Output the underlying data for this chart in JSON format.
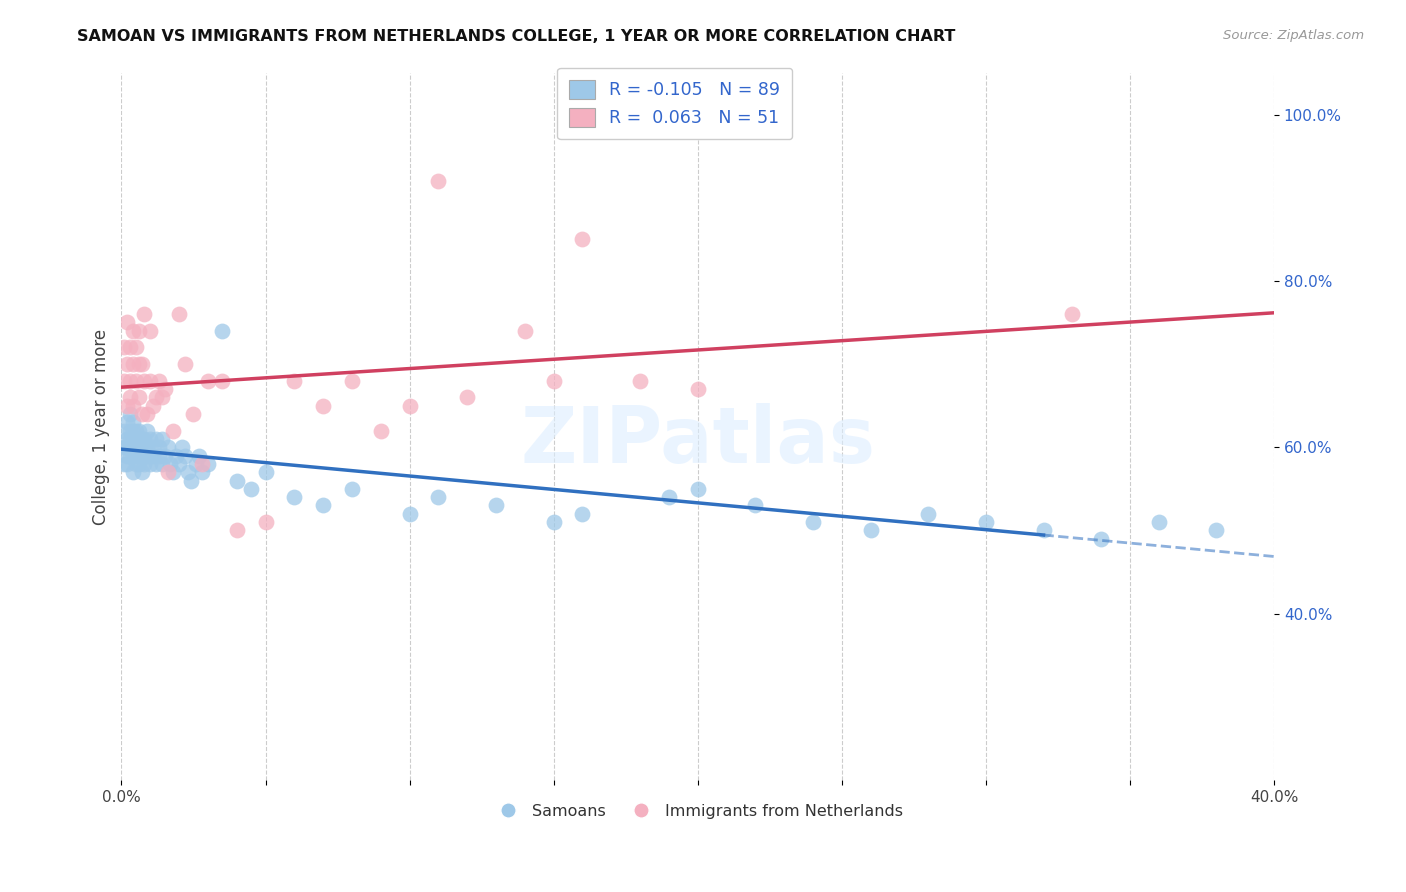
{
  "title": "SAMOAN VS IMMIGRANTS FROM NETHERLANDS COLLEGE, 1 YEAR OR MORE CORRELATION CHART",
  "source": "Source: ZipAtlas.com",
  "ylabel": "College, 1 year or more",
  "xlim": [
    0.0,
    0.4
  ],
  "ylim": [
    0.2,
    1.05
  ],
  "xtick_pos": [
    0.0,
    0.05,
    0.1,
    0.15,
    0.2,
    0.25,
    0.3,
    0.35,
    0.4
  ],
  "xtick_labels": [
    "0.0%",
    "",
    "",
    "",
    "",
    "",
    "",
    "",
    "40.0%"
  ],
  "ytick_pos": [
    0.4,
    0.6,
    0.8,
    1.0
  ],
  "ytick_labels": [
    "40.0%",
    "60.0%",
    "80.0%",
    "100.0%"
  ],
  "blue_r": -0.105,
  "blue_n": 89,
  "pink_r": 0.063,
  "pink_n": 51,
  "blue_color": "#9ec8e8",
  "pink_color": "#f4b0c0",
  "blue_line_color": "#3070c0",
  "pink_line_color": "#d04060",
  "background_color": "#ffffff",
  "grid_color": "#cccccc",
  "watermark": "ZIPatlas",
  "legend_label_blue": "Samoans",
  "legend_label_pink": "Immigrants from Netherlands",
  "blue_x": [
    0.001,
    0.001,
    0.001,
    0.002,
    0.002,
    0.002,
    0.002,
    0.002,
    0.003,
    0.003,
    0.003,
    0.003,
    0.003,
    0.004,
    0.004,
    0.004,
    0.004,
    0.004,
    0.004,
    0.005,
    0.005,
    0.005,
    0.005,
    0.005,
    0.005,
    0.006,
    0.006,
    0.006,
    0.006,
    0.006,
    0.007,
    0.007,
    0.007,
    0.007,
    0.008,
    0.008,
    0.008,
    0.008,
    0.009,
    0.009,
    0.009,
    0.01,
    0.01,
    0.01,
    0.011,
    0.011,
    0.012,
    0.012,
    0.013,
    0.013,
    0.014,
    0.014,
    0.015,
    0.016,
    0.017,
    0.018,
    0.019,
    0.02,
    0.021,
    0.022,
    0.023,
    0.024,
    0.026,
    0.027,
    0.028,
    0.03,
    0.035,
    0.04,
    0.045,
    0.05,
    0.06,
    0.07,
    0.08,
    0.1,
    0.11,
    0.13,
    0.15,
    0.16,
    0.19,
    0.2,
    0.22,
    0.24,
    0.26,
    0.28,
    0.3,
    0.32,
    0.34,
    0.36,
    0.38
  ],
  "blue_y": [
    0.6,
    0.62,
    0.58,
    0.59,
    0.61,
    0.6,
    0.63,
    0.58,
    0.6,
    0.62,
    0.59,
    0.61,
    0.64,
    0.6,
    0.62,
    0.59,
    0.61,
    0.63,
    0.57,
    0.6,
    0.61,
    0.59,
    0.62,
    0.6,
    0.58,
    0.61,
    0.59,
    0.6,
    0.62,
    0.58,
    0.6,
    0.59,
    0.61,
    0.57,
    0.6,
    0.59,
    0.61,
    0.58,
    0.6,
    0.59,
    0.62,
    0.59,
    0.61,
    0.58,
    0.6,
    0.59,
    0.58,
    0.61,
    0.59,
    0.6,
    0.58,
    0.61,
    0.59,
    0.6,
    0.58,
    0.57,
    0.59,
    0.58,
    0.6,
    0.59,
    0.57,
    0.56,
    0.58,
    0.59,
    0.57,
    0.58,
    0.74,
    0.56,
    0.55,
    0.57,
    0.54,
    0.53,
    0.55,
    0.52,
    0.54,
    0.53,
    0.51,
    0.52,
    0.54,
    0.55,
    0.53,
    0.51,
    0.5,
    0.52,
    0.51,
    0.5,
    0.49,
    0.51,
    0.5
  ],
  "pink_x": [
    0.001,
    0.001,
    0.002,
    0.002,
    0.002,
    0.003,
    0.003,
    0.003,
    0.004,
    0.004,
    0.004,
    0.005,
    0.005,
    0.006,
    0.006,
    0.006,
    0.007,
    0.007,
    0.008,
    0.008,
    0.009,
    0.01,
    0.01,
    0.011,
    0.012,
    0.013,
    0.014,
    0.015,
    0.016,
    0.018,
    0.02,
    0.022,
    0.025,
    0.028,
    0.03,
    0.035,
    0.04,
    0.05,
    0.06,
    0.07,
    0.08,
    0.09,
    0.1,
    0.11,
    0.12,
    0.14,
    0.15,
    0.16,
    0.18,
    0.2,
    0.33
  ],
  "pink_y": [
    0.68,
    0.72,
    0.65,
    0.7,
    0.75,
    0.66,
    0.72,
    0.68,
    0.7,
    0.65,
    0.74,
    0.68,
    0.72,
    0.66,
    0.7,
    0.74,
    0.64,
    0.7,
    0.68,
    0.76,
    0.64,
    0.68,
    0.74,
    0.65,
    0.66,
    0.68,
    0.66,
    0.67,
    0.57,
    0.62,
    0.76,
    0.7,
    0.64,
    0.58,
    0.68,
    0.68,
    0.5,
    0.51,
    0.68,
    0.65,
    0.68,
    0.62,
    0.65,
    0.92,
    0.66,
    0.74,
    0.68,
    0.85,
    0.68,
    0.67,
    0.76
  ],
  "blue_line_start_x": 0.0,
  "blue_line_end_solid": 0.32,
  "blue_line_end_x": 0.4,
  "pink_line_start_x": 0.0,
  "pink_line_end_x": 0.4
}
